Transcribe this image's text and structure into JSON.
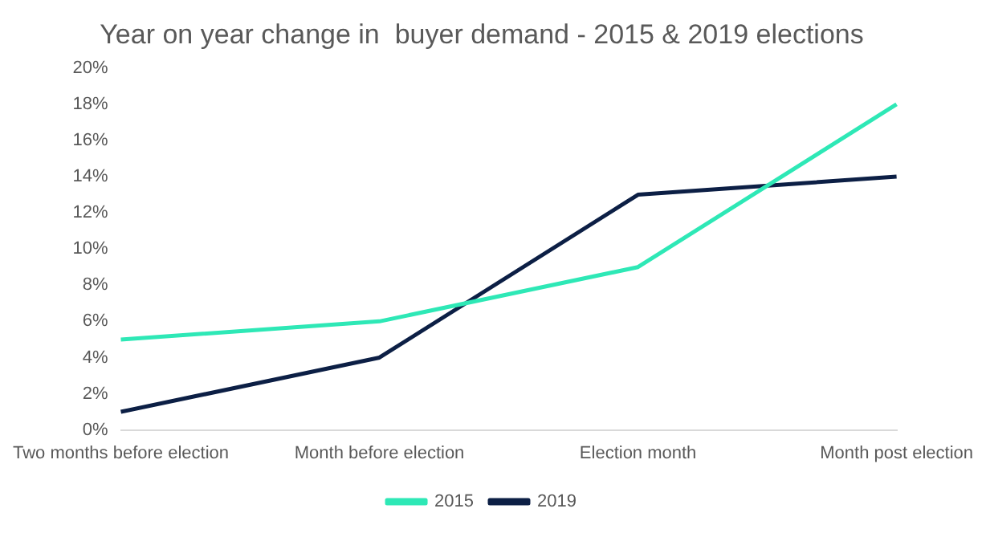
{
  "chart_data": {
    "type": "line",
    "title": "Year on year change in  buyer demand - 2015 & 2019 elections",
    "categories": [
      "Two months before election",
      "Month before election",
      "Election month",
      "Month post election"
    ],
    "series": [
      {
        "name": "2015",
        "color": "#2ee8b6",
        "values": [
          5,
          6,
          9,
          18
        ]
      },
      {
        "name": "2019",
        "color": "#0c1f45",
        "values": [
          1,
          4,
          13,
          14
        ]
      }
    ],
    "ylim": [
      0,
      20
    ],
    "yticks": [
      {
        "value": 0,
        "label": "0%"
      },
      {
        "value": 2,
        "label": "2%"
      },
      {
        "value": 4,
        "label": "4%"
      },
      {
        "value": 6,
        "label": "6%"
      },
      {
        "value": 8,
        "label": "8%"
      },
      {
        "value": 10,
        "label": "10%"
      },
      {
        "value": 12,
        "label": "12%"
      },
      {
        "value": 14,
        "label": "14%"
      },
      {
        "value": 16,
        "label": "16%"
      },
      {
        "value": 18,
        "label": "18%"
      },
      {
        "value": 20,
        "label": "20%"
      }
    ],
    "grid": false,
    "legend": "bottom",
    "marker": "none",
    "line_style": "solid"
  }
}
